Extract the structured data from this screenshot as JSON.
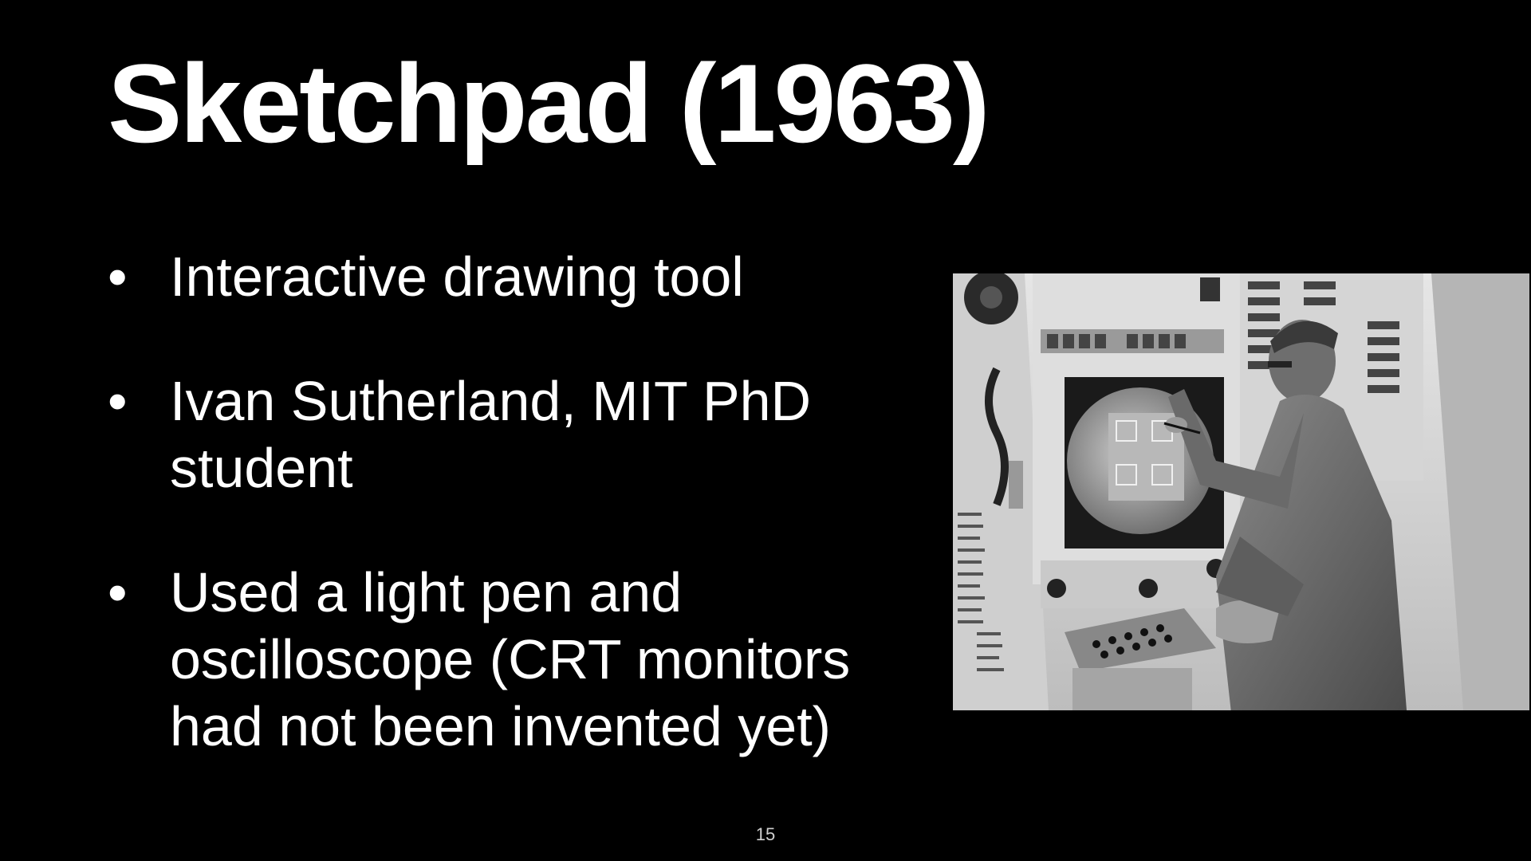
{
  "slide": {
    "title": "Sketchpad (1963)",
    "bullets": [
      {
        "marker": "•",
        "text": "Interactive drawing tool"
      },
      {
        "marker": "•",
        "text": "Ivan Sutherland, MIT PhD student"
      },
      {
        "marker": "•",
        "text": "Used a light pen and oscilloscope (CRT monitors had not been invented yet)"
      }
    ],
    "page_number": "15"
  },
  "colors": {
    "background": "#000000",
    "text": "#ffffff"
  }
}
